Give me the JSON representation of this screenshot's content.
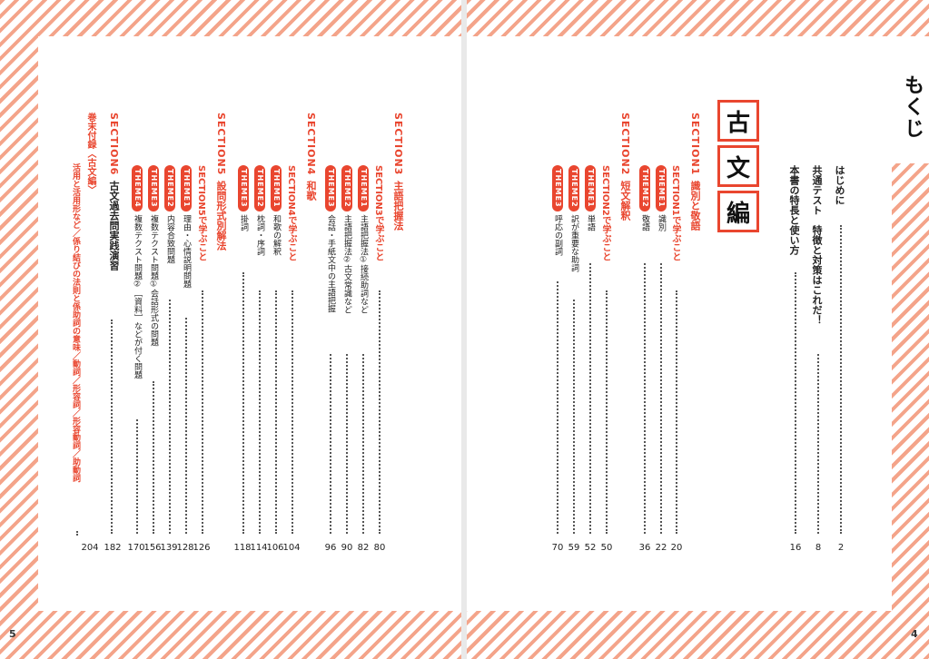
{
  "mokuji_title": "もくじ",
  "hen": [
    "古",
    "文",
    "編"
  ],
  "page_numbers": {
    "left": "5",
    "right": "4"
  },
  "intro": [
    {
      "text": "はじめに",
      "page": "2"
    },
    {
      "text": "共通テスト　特徴と対策はこれだ！",
      "page": "8"
    },
    {
      "text": "本書の特長と使い方",
      "page": "16"
    }
  ],
  "sections": {
    "s1": {
      "label": "SECTION1",
      "title": "識別と敬語"
    },
    "s2": {
      "label": "SECTION2",
      "title": "短文解釈"
    },
    "s3": {
      "label": "SECTION3",
      "title": "主語把握法"
    },
    "s4": {
      "label": "SECTION4",
      "title": "和歌"
    },
    "s5": {
      "label": "SECTION5",
      "title": "設問形式別解法"
    },
    "s6": {
      "label": "SECTION6",
      "title": "古文過去問実践演習"
    }
  },
  "learn": {
    "s1": {
      "text": "SECTION1で学ぶこと",
      "page": "20"
    },
    "s2": {
      "text": "SECTION2で学ぶこと",
      "page": "50"
    },
    "s3": {
      "text": "SECTION3で学ぶこと",
      "page": "80"
    },
    "s4": {
      "text": "SECTION4で学ぶこと",
      "page": "104"
    },
    "s5": {
      "text": "SECTION5で学ぶこと",
      "page": "126"
    }
  },
  "themes": {
    "s1t1": {
      "badge": "THEME1",
      "text": "識別",
      "page": "22"
    },
    "s1t2": {
      "badge": "THEME2",
      "text": "敬語",
      "page": "36"
    },
    "s2t1": {
      "badge": "THEME1",
      "text": "単語",
      "page": "52"
    },
    "s2t2": {
      "badge": "THEME2",
      "text": "訳が重要な助詞",
      "page": "59"
    },
    "s2t3": {
      "badge": "THEME3",
      "text": "呼応の副詞",
      "page": "70"
    },
    "s3t1": {
      "badge": "THEME1",
      "text": "主語把握法①接続助詞など",
      "page": "82"
    },
    "s3t2": {
      "badge": "THEME2",
      "text": "主語把握法②古文常識など",
      "page": "90"
    },
    "s3t3": {
      "badge": "THEME3",
      "text": "会話・手紙文中の主語把握",
      "page": "96"
    },
    "s4t1": {
      "badge": "THEME1",
      "text": "和歌の解釈",
      "page": "106"
    },
    "s4t2": {
      "badge": "THEME2",
      "text": "枕詞・序詞",
      "page": "114"
    },
    "s4t3": {
      "badge": "THEME3",
      "text": "掛詞",
      "page": "118"
    },
    "s5t1": {
      "badge": "THEME1",
      "text": "理由・心情説明問題",
      "page": "128"
    },
    "s5t2": {
      "badge": "THEME2",
      "text": "内容合致問題",
      "page": "139"
    },
    "s5t3": {
      "badge": "THEME3",
      "text": "複数テクスト問題①会話形式の問題",
      "page": "156"
    },
    "s5t4": {
      "badge": "THEME4",
      "text": "複数テクスト問題②［資料］などが付く問題",
      "page": "170"
    }
  },
  "s6_page": "182",
  "appendix": {
    "title": "巻末付録〈古文編〉",
    "text": "活用と活用形など／係り結びの法則と係助詞の意味／動詞／形容詞／形容動詞／助動詞",
    "page": "204"
  }
}
